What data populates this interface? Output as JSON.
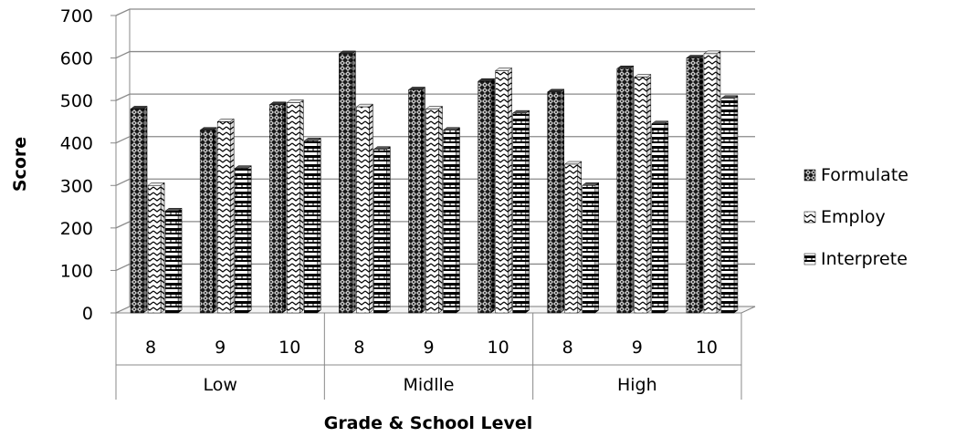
{
  "chart_data": {
    "type": "bar",
    "style": "3d-clustered-column",
    "title": "",
    "xlabel": "Grade & School Level",
    "ylabel": "Score",
    "ylim": [
      0,
      700
    ],
    "yticks": [
      0,
      100,
      200,
      300,
      400,
      500,
      600,
      700
    ],
    "grid": true,
    "legend_position": "right",
    "groups": [
      {
        "label": "Low",
        "categories": [
          "8",
          "9",
          "10"
        ]
      },
      {
        "label": "Midlle",
        "categories": [
          "8",
          "9",
          "10"
        ]
      },
      {
        "label": "High",
        "categories": [
          "8",
          "9",
          "10"
        ]
      }
    ],
    "series": [
      {
        "name": "Formulate",
        "pattern": "dense-crosshatch",
        "values": [
          480,
          430,
          490,
          610,
          525,
          545,
          520,
          575,
          600
        ]
      },
      {
        "name": "Employ",
        "pattern": "chevron",
        "values": [
          300,
          450,
          495,
          485,
          480,
          570,
          350,
          555,
          610
        ]
      },
      {
        "name": "Interprete",
        "pattern": "horizontal-stripes",
        "values": [
          240,
          340,
          405,
          385,
          430,
          470,
          300,
          445,
          505
        ]
      }
    ]
  }
}
